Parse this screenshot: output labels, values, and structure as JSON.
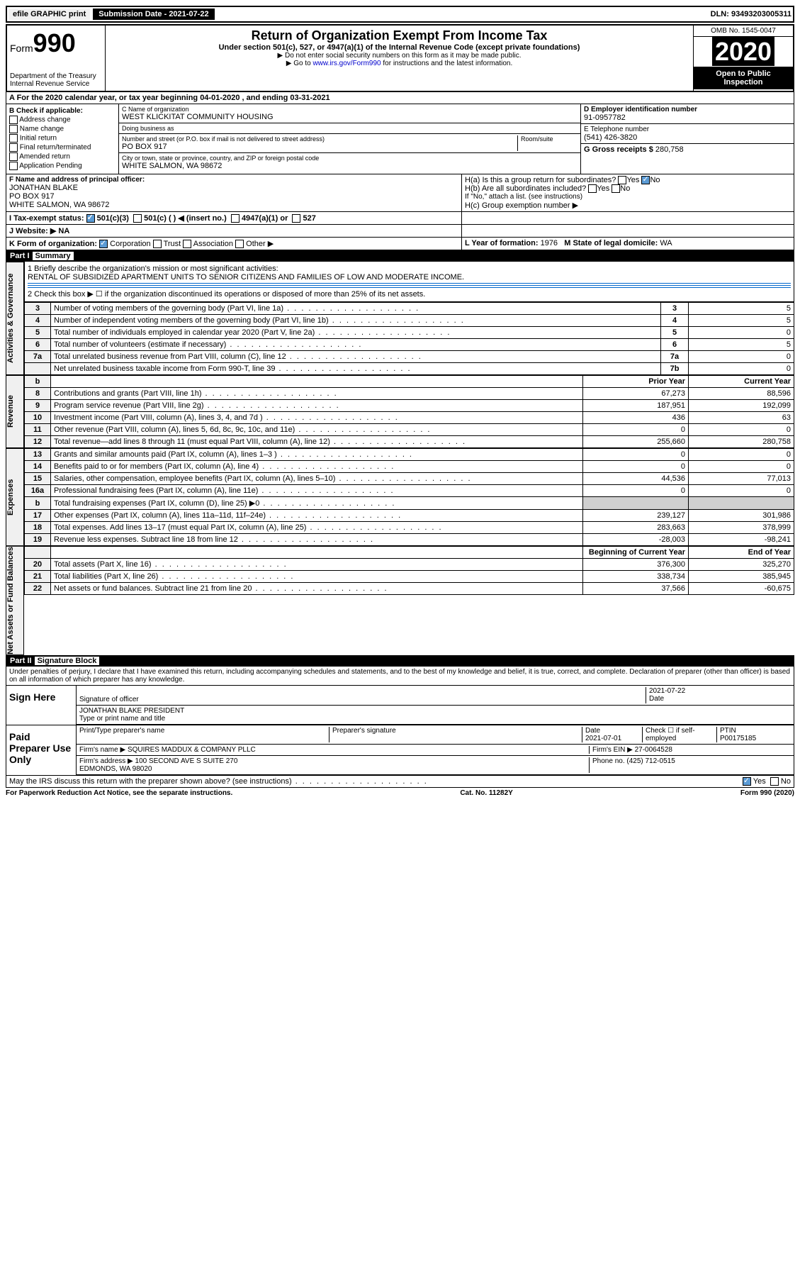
{
  "topbar": {
    "efile": "efile GRAPHIC print",
    "submission": "Submission Date - 2021-07-22",
    "dln": "DLN: 93493203005311"
  },
  "header": {
    "form": "Form",
    "formnum": "990",
    "dept": "Department of the Treasury Internal Revenue Service",
    "title": "Return of Organization Exempt From Income Tax",
    "sub": "Under section 501(c), 527, or 4947(a)(1) of the Internal Revenue Code (except private foundations)",
    "note1": "▶ Do not enter social security numbers on this form as it may be made public.",
    "note2": "▶ Go to www.irs.gov/Form990 for instructions and the latest information.",
    "omb": "OMB No. 1545-0047",
    "year": "2020",
    "open": "Open to Public Inspection"
  },
  "rowA": "A For the 2020 calendar year, or tax year beginning 04-01-2020 , and ending 03-31-2021",
  "boxB": {
    "label": "B Check if applicable:",
    "opts": [
      "Address change",
      "Name change",
      "Initial return",
      "Final return/terminated",
      "Amended return",
      "Application Pending"
    ]
  },
  "boxC": {
    "nameLabel": "C Name of organization",
    "name": "WEST KLICKITAT COMMUNITY HOUSING",
    "dba": "Doing business as",
    "streetLabel": "Number and street (or P.O. box if mail is not delivered to street address)",
    "street": "PO BOX 917",
    "room": "Room/suite",
    "cityLabel": "City or town, state or province, country, and ZIP or foreign postal code",
    "city": "WHITE SALMON, WA  98672"
  },
  "boxD": {
    "label": "D Employer identification number",
    "val": "91-0957782"
  },
  "boxE": {
    "label": "E Telephone number",
    "val": "(541) 426-3820"
  },
  "boxG": {
    "label": "G Gross receipts $",
    "val": "280,758"
  },
  "boxF": {
    "label": "F Name and address of principal officer:",
    "name": "JONATHAN BLAKE",
    "addr1": "PO BOX 917",
    "addr2": "WHITE SALMON, WA  98672"
  },
  "boxH": {
    "a": "H(a) Is this a group return for subordinates?",
    "b": "H(b) Are all subordinates included?",
    "note": "If \"No,\" attach a list. (see instructions)",
    "c": "H(c) Group exemption number ▶"
  },
  "taxExempt": {
    "label": "Tax-exempt status:",
    "c3": "501(c)(3)",
    "c": "501(c) ( ) ◀ (insert no.)",
    "a1": "4947(a)(1) or",
    "s527": "527"
  },
  "rowI": {
    "label": "I Tax-exempt status:"
  },
  "rowJ": {
    "label": "J Website: ▶",
    "val": "NA"
  },
  "rowK": {
    "label": "K Form of organization:",
    "corp": "Corporation",
    "trust": "Trust",
    "assoc": "Association",
    "other": "Other ▶"
  },
  "rowL": {
    "label": "L Year of formation:",
    "val": "1976"
  },
  "rowM": {
    "label": "M State of legal domicile:",
    "val": "WA"
  },
  "part1": {
    "header": "Part I",
    "title": "Summary"
  },
  "summary": {
    "q1": "1 Briefly describe the organization's mission or most significant activities:",
    "mission": "RENTAL OF SUBSIDIZED APARTMENT UNITS TO SENIOR CITIZENS AND FAMILIES OF LOW AND MODERATE INCOME.",
    "q2": "2 Check this box ▶ ☐ if the organization discontinued its operations or disposed of more than 25% of its net assets.",
    "rows": [
      {
        "n": "3",
        "t": "Number of voting members of the governing body (Part VI, line 1a)",
        "l": "3",
        "v": "5"
      },
      {
        "n": "4",
        "t": "Number of independent voting members of the governing body (Part VI, line 1b)",
        "l": "4",
        "v": "5"
      },
      {
        "n": "5",
        "t": "Total number of individuals employed in calendar year 2020 (Part V, line 2a)",
        "l": "5",
        "v": "0"
      },
      {
        "n": "6",
        "t": "Total number of volunteers (estimate if necessary)",
        "l": "6",
        "v": "5"
      },
      {
        "n": "7a",
        "t": "Total unrelated business revenue from Part VIII, column (C), line 12",
        "l": "7a",
        "v": "0"
      },
      {
        "n": "",
        "t": "Net unrelated business taxable income from Form 990-T, line 39",
        "l": "7b",
        "v": "0"
      }
    ],
    "yearHeaders": {
      "b": "b",
      "prior": "Prior Year",
      "current": "Current Year"
    },
    "revenue": [
      {
        "n": "8",
        "t": "Contributions and grants (Part VIII, line 1h)",
        "p": "67,273",
        "c": "88,596"
      },
      {
        "n": "9",
        "t": "Program service revenue (Part VIII, line 2g)",
        "p": "187,951",
        "c": "192,099"
      },
      {
        "n": "10",
        "t": "Investment income (Part VIII, column (A), lines 3, 4, and 7d )",
        "p": "436",
        "c": "63"
      },
      {
        "n": "11",
        "t": "Other revenue (Part VIII, column (A), lines 5, 6d, 8c, 9c, 10c, and 11e)",
        "p": "0",
        "c": "0"
      },
      {
        "n": "12",
        "t": "Total revenue—add lines 8 through 11 (must equal Part VIII, column (A), line 12)",
        "p": "255,660",
        "c": "280,758"
      }
    ],
    "expenses": [
      {
        "n": "13",
        "t": "Grants and similar amounts paid (Part IX, column (A), lines 1–3 )",
        "p": "0",
        "c": "0"
      },
      {
        "n": "14",
        "t": "Benefits paid to or for members (Part IX, column (A), line 4)",
        "p": "0",
        "c": "0"
      },
      {
        "n": "15",
        "t": "Salaries, other compensation, employee benefits (Part IX, column (A), lines 5–10)",
        "p": "44,536",
        "c": "77,013"
      },
      {
        "n": "16a",
        "t": "Professional fundraising fees (Part IX, column (A), line 11e)",
        "p": "0",
        "c": "0"
      },
      {
        "n": "b",
        "t": "Total fundraising expenses (Part IX, column (D), line 25) ▶0",
        "p": "",
        "c": ""
      },
      {
        "n": "17",
        "t": "Other expenses (Part IX, column (A), lines 11a–11d, 11f–24e)",
        "p": "239,127",
        "c": "301,986"
      },
      {
        "n": "18",
        "t": "Total expenses. Add lines 13–17 (must equal Part IX, column (A), line 25)",
        "p": "283,663",
        "c": "378,999"
      },
      {
        "n": "19",
        "t": "Revenue less expenses. Subtract line 18 from line 12",
        "p": "-28,003",
        "c": "-98,241"
      }
    ],
    "netHeaders": {
      "begin": "Beginning of Current Year",
      "end": "End of Year"
    },
    "net": [
      {
        "n": "20",
        "t": "Total assets (Part X, line 16)",
        "p": "376,300",
        "c": "325,270"
      },
      {
        "n": "21",
        "t": "Total liabilities (Part X, line 26)",
        "p": "338,734",
        "c": "385,945"
      },
      {
        "n": "22",
        "t": "Net assets or fund balances. Subtract line 21 from line 20",
        "p": "37,566",
        "c": "-60,675"
      }
    ],
    "sideLabels": {
      "gov": "Activities & Governance",
      "rev": "Revenue",
      "exp": "Expenses",
      "net": "Net Assets or Fund Balances"
    }
  },
  "part2": {
    "header": "Part II",
    "title": "Signature Block"
  },
  "penalties": "Under penalties of perjury, I declare that I have examined this return, including accompanying schedules and statements, and to the best of my knowledge and belief, it is true, correct, and complete. Declaration of preparer (other than officer) is based on all information of which preparer has any knowledge.",
  "sign": {
    "side": "Sign Here",
    "date": "2021-07-22",
    "sigLabel": "Signature of officer",
    "dateLabel": "Date",
    "name": "JONATHAN BLAKE PRESIDENT",
    "nameLabel": "Type or print name and title"
  },
  "paid": {
    "side": "Paid Preparer Use Only",
    "h1": "Print/Type preparer's name",
    "h2": "Preparer's signature",
    "h3": "Date",
    "date": "2021-07-01",
    "h4": "Check ☐ if self-employed",
    "h5": "PTIN",
    "ptin": "P00175185",
    "firmName": "Firm's name ▶ SQUIRES MADDUX & COMPANY PLLC",
    "firmEin": "Firm's EIN ▶ 27-0064528",
    "firmAddr": "Firm's address ▶ 100 SECOND AVE S SUITE 270",
    "firmCity": "EDMONDS, WA  98020",
    "phone": "Phone no. (425) 712-0515"
  },
  "discuss": "May the IRS discuss this return with the preparer shown above? (see instructions)",
  "footer": {
    "pra": "For Paperwork Reduction Act Notice, see the separate instructions.",
    "cat": "Cat. No. 11282Y",
    "form": "Form 990 (2020)"
  }
}
